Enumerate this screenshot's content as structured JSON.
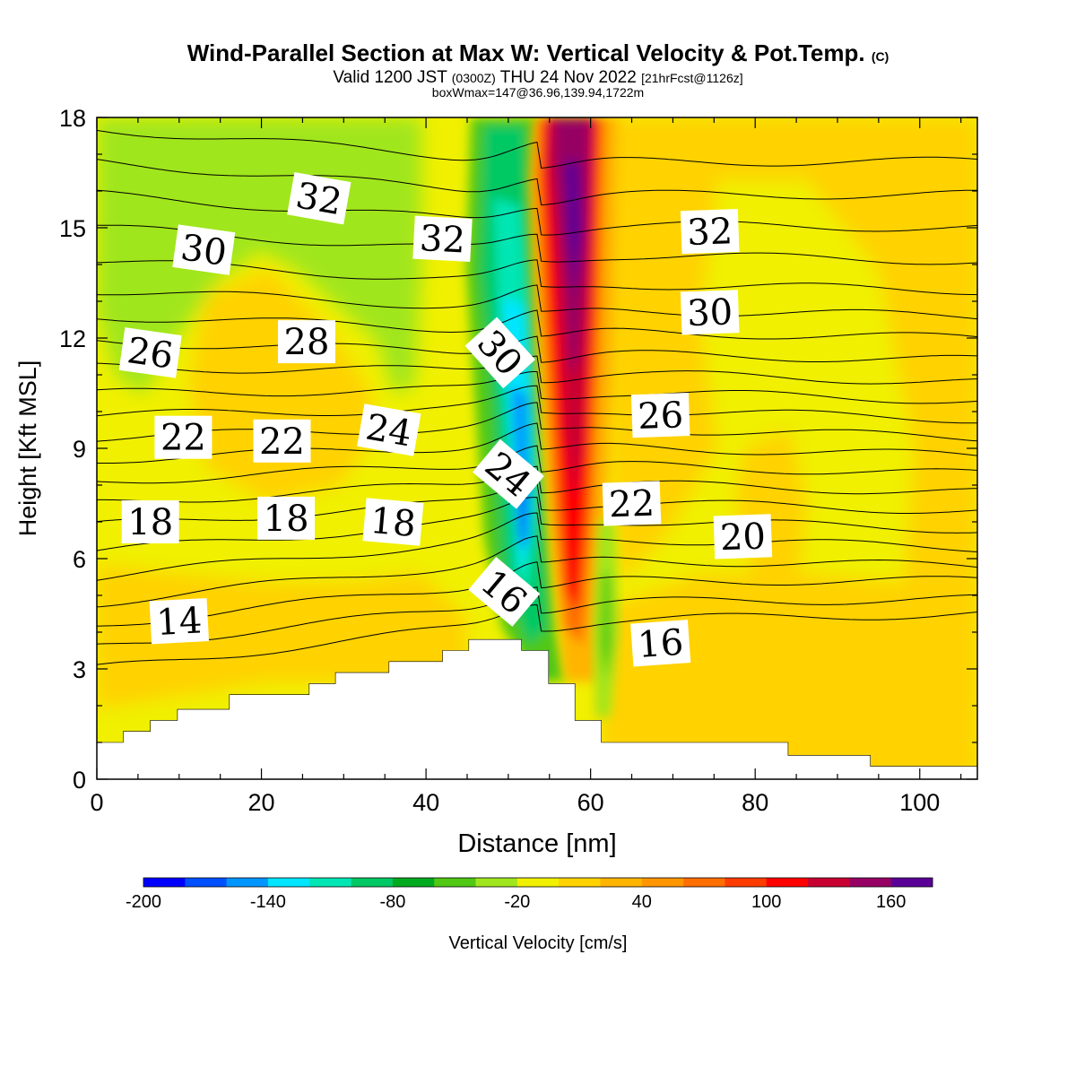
{
  "title": {
    "main": "Wind-Parallel Section at Max W: Vertical Velocity & Pot.Temp.",
    "copyright": "(C)",
    "valid_a": "Valid 1200 JST",
    "valid_b": "(0300Z)",
    "valid_c": "THU 24 Nov 2022",
    "valid_d": "[21hrFcst@1126z]",
    "box": "boxWmax=147@36.96,139.94,1722m"
  },
  "chart_data": {
    "type": "heatmap",
    "xlabel": "Distance [nm]",
    "ylabel": "Height [Kft MSL]",
    "xlim": [
      0,
      107
    ],
    "ylim": [
      0,
      18
    ],
    "x_ticks": [
      0,
      20,
      40,
      60,
      80,
      100
    ],
    "y_ticks": [
      0,
      3,
      6,
      9,
      12,
      15,
      18
    ],
    "colorbar": {
      "label": "Vertical Velocity [cm/s]",
      "min": -200,
      "max": 180,
      "step": 20,
      "tick_values": [
        -200,
        -140,
        -80,
        -20,
        40,
        100,
        160
      ],
      "tick_labels": [
        "-200",
        "-140",
        "-80",
        "-20",
        "40",
        "100",
        "160"
      ],
      "colors": [
        "#0000ff",
        "#0050ff",
        "#0096ff",
        "#00e6ff",
        "#00e6b4",
        "#00c864",
        "#00aa1e",
        "#50c814",
        "#a0e61e",
        "#f0f000",
        "#ffd200",
        "#ffb400",
        "#ff9600",
        "#ff6e00",
        "#ff3c00",
        "#ff0000",
        "#c80032",
        "#960064",
        "#5a0096"
      ]
    },
    "terrain_profile": [
      {
        "x": 0,
        "y": 1.0
      },
      {
        "x": 3.2,
        "y": 1.0
      },
      {
        "x": 3.2,
        "y": 1.3
      },
      {
        "x": 6.5,
        "y": 1.3
      },
      {
        "x": 6.5,
        "y": 1.6
      },
      {
        "x": 9.8,
        "y": 1.6
      },
      {
        "x": 9.8,
        "y": 1.9
      },
      {
        "x": 16.1,
        "y": 1.9
      },
      {
        "x": 16.1,
        "y": 2.3
      },
      {
        "x": 25.8,
        "y": 2.3
      },
      {
        "x": 25.8,
        "y": 2.6
      },
      {
        "x": 29.0,
        "y": 2.6
      },
      {
        "x": 29.0,
        "y": 2.9
      },
      {
        "x": 35.5,
        "y": 2.9
      },
      {
        "x": 35.5,
        "y": 3.2
      },
      {
        "x": 42.0,
        "y": 3.2
      },
      {
        "x": 42.0,
        "y": 3.5
      },
      {
        "x": 45.2,
        "y": 3.5
      },
      {
        "x": 45.2,
        "y": 3.8
      },
      {
        "x": 51.6,
        "y": 3.8
      },
      {
        "x": 51.6,
        "y": 3.5
      },
      {
        "x": 54.9,
        "y": 3.5
      },
      {
        "x": 54.9,
        "y": 2.6
      },
      {
        "x": 58.1,
        "y": 2.6
      },
      {
        "x": 58.1,
        "y": 1.6
      },
      {
        "x": 61.3,
        "y": 1.6
      },
      {
        "x": 61.3,
        "y": 1.0
      },
      {
        "x": 84.0,
        "y": 1.0
      },
      {
        "x": 84.0,
        "y": 0.65
      },
      {
        "x": 94.0,
        "y": 0.65
      },
      {
        "x": 94.0,
        "y": 0.35
      },
      {
        "x": 107,
        "y": 0.35
      }
    ],
    "theta_isentropes": [
      {
        "value": 14,
        "y0": 3.0,
        "yc": 4.3,
        "y1": 4.5
      },
      {
        "value": 15,
        "y0": 3.6,
        "yc": 4.8,
        "y1": 4.9
      },
      {
        "value": 16,
        "y0": 4.2,
        "yc": 5.4,
        "y1": 5.4
      },
      {
        "value": 17,
        "y0": 4.8,
        "yc": 6.0,
        "y1": 5.8
      },
      {
        "value": 18,
        "y0": 5.5,
        "yc": 6.6,
        "y1": 6.3
      },
      {
        "value": 19,
        "y0": 6.2,
        "yc": 7.1,
        "y1": 6.8
      },
      {
        "value": 20,
        "y0": 6.9,
        "yc": 7.6,
        "y1": 7.3
      },
      {
        "value": 21,
        "y0": 7.5,
        "yc": 8.1,
        "y1": 7.8
      },
      {
        "value": 22,
        "y0": 8.1,
        "yc": 8.6,
        "y1": 8.3
      },
      {
        "value": 23,
        "y0": 8.7,
        "yc": 9.1,
        "y1": 8.8
      },
      {
        "value": 24,
        "y0": 9.3,
        "yc": 9.6,
        "y1": 9.3
      },
      {
        "value": 25,
        "y0": 9.9,
        "yc": 10.1,
        "y1": 9.8
      },
      {
        "value": 26,
        "y0": 10.5,
        "yc": 10.6,
        "y1": 10.3
      },
      {
        "value": 27,
        "y0": 11.2,
        "yc": 11.1,
        "y1": 10.8
      },
      {
        "value": 28,
        "y0": 11.9,
        "yc": 11.6,
        "y1": 11.4
      },
      {
        "value": 29,
        "y0": 12.6,
        "yc": 12.2,
        "y1": 12.0
      },
      {
        "value": 30,
        "y0": 13.3,
        "yc": 12.8,
        "y1": 12.6
      },
      {
        "value": 31,
        "y0": 14.1,
        "yc": 13.5,
        "y1": 13.3
      },
      {
        "value": 32,
        "y0": 15.0,
        "yc": 14.3,
        "y1": 14.1
      },
      {
        "value": 33,
        "y0": 15.9,
        "yc": 15.1,
        "y1": 15.0
      },
      {
        "value": 34,
        "y0": 16.8,
        "yc": 15.9,
        "y1": 15.9
      },
      {
        "value": 35,
        "y0": 17.7,
        "yc": 16.8,
        "y1": 16.8
      }
    ],
    "contour_labels": [
      {
        "text": "32",
        "x": 27,
        "y": 15.8,
        "angle": 10
      },
      {
        "text": "30",
        "x": 13,
        "y": 14.4,
        "angle": 8
      },
      {
        "text": "32",
        "x": 42,
        "y": 14.7,
        "angle": 3
      },
      {
        "text": "32",
        "x": 74.5,
        "y": 14.9,
        "angle": -2
      },
      {
        "text": "30",
        "x": 74.5,
        "y": 12.7,
        "angle": -2
      },
      {
        "text": "30",
        "x": 49,
        "y": 11.6,
        "angle": 48
      },
      {
        "text": "28",
        "x": 25.5,
        "y": 11.9,
        "angle": 0
      },
      {
        "text": "26",
        "x": 6.5,
        "y": 11.6,
        "angle": 8
      },
      {
        "text": "26",
        "x": 68.5,
        "y": 9.9,
        "angle": -2
      },
      {
        "text": "24",
        "x": 35.5,
        "y": 9.5,
        "angle": 10
      },
      {
        "text": "22",
        "x": 10.5,
        "y": 9.3,
        "angle": 0
      },
      {
        "text": "22",
        "x": 22.5,
        "y": 9.2,
        "angle": 0
      },
      {
        "text": "24",
        "x": 50,
        "y": 8.3,
        "angle": 40
      },
      {
        "text": "22",
        "x": 65,
        "y": 7.5,
        "angle": -2
      },
      {
        "text": "20",
        "x": 78.5,
        "y": 6.6,
        "angle": -2
      },
      {
        "text": "18",
        "x": 6.5,
        "y": 7.0,
        "angle": 0
      },
      {
        "text": "18",
        "x": 23,
        "y": 7.1,
        "angle": 0
      },
      {
        "text": "18",
        "x": 36,
        "y": 7.0,
        "angle": 5
      },
      {
        "text": "16",
        "x": 49.5,
        "y": 5.1,
        "angle": 40
      },
      {
        "text": "16",
        "x": 68.5,
        "y": 3.7,
        "angle": -4
      },
      {
        "text": "14",
        "x": 10,
        "y": 4.3,
        "angle": -3
      }
    ]
  }
}
